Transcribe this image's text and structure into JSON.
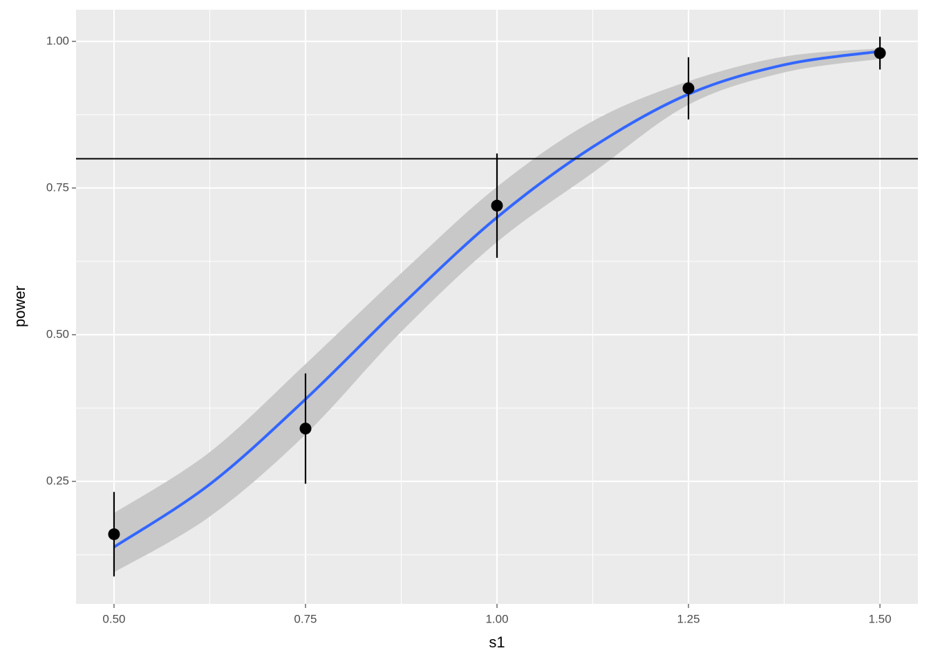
{
  "chart_data": {
    "type": "scatter",
    "xlabel": "s1",
    "ylabel": "power",
    "xlim": [
      0.4504,
      1.5496
    ],
    "ylim": [
      0.0413,
      1.054
    ],
    "xticks": [
      {
        "value": 0.5,
        "label": "0.50"
      },
      {
        "value": 0.75,
        "label": "0.75"
      },
      {
        "value": 1.0,
        "label": "1.00"
      },
      {
        "value": 1.25,
        "label": "1.25"
      },
      {
        "value": 1.5,
        "label": "1.50"
      }
    ],
    "yticks": [
      {
        "value": 0.25,
        "label": "0.25"
      },
      {
        "value": 0.5,
        "label": "0.50"
      },
      {
        "value": 0.75,
        "label": "0.75"
      },
      {
        "value": 1.0,
        "label": "1.00"
      }
    ],
    "grid": true,
    "hline": 0.8,
    "points": {
      "color": "#000000",
      "x": [
        0.5,
        0.75,
        1.0,
        1.25,
        1.5
      ],
      "values": [
        0.16,
        0.34,
        0.72,
        0.92,
        0.98
      ],
      "errors": [
        0.072,
        0.094,
        0.089,
        0.053,
        0.028
      ]
    },
    "fit": {
      "color": "#3366ff",
      "band_color": "#c8c8c8",
      "x": [
        0.5,
        0.625,
        0.75,
        0.875,
        1.0,
        1.125,
        1.25,
        1.375,
        1.5
      ],
      "values": [
        0.138,
        0.245,
        0.39,
        0.55,
        0.7,
        0.82,
        0.91,
        0.96,
        0.983
      ],
      "lower": [
        0.095,
        0.19,
        0.33,
        0.505,
        0.658,
        0.776,
        0.892,
        0.947,
        0.97
      ],
      "upper": [
        0.196,
        0.3,
        0.45,
        0.605,
        0.752,
        0.864,
        0.932,
        0.974,
        0.988
      ]
    }
  }
}
